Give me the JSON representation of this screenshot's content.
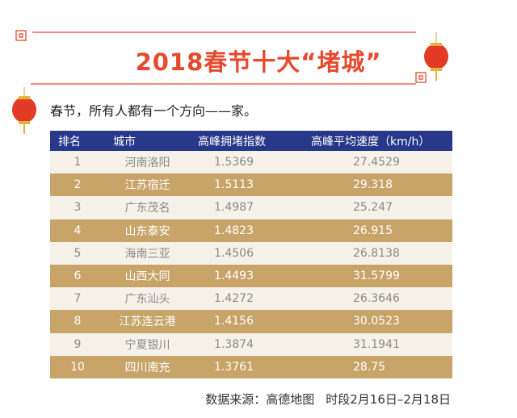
{
  "header": {
    "title": "2018春节十大“堵城”",
    "subtitle": "春节，所有人都有一个方向——家。"
  },
  "table": {
    "columns": [
      "排名",
      "城市",
      "高峰拥堵指数",
      "高峰平均速度（km/h）"
    ],
    "rows": [
      [
        1,
        "河南洛阳",
        1.5369,
        27.4529
      ],
      [
        2,
        "江苏宿迁",
        1.5113,
        29.318
      ],
      [
        3,
        "广东茂名",
        1.4987,
        25.247
      ],
      [
        4,
        "山东泰安",
        1.4823,
        26.915
      ],
      [
        5,
        "海南三亚",
        1.4506,
        26.8138
      ],
      [
        6,
        "山西大同",
        1.4493,
        31.5799
      ],
      [
        7,
        "广东汕头",
        1.4272,
        26.3646
      ],
      [
        8,
        "江苏连云港",
        1.4156,
        30.0523
      ],
      [
        9,
        "宁夏银川",
        1.3874,
        31.1941
      ],
      [
        10,
        "四川南充",
        1.3761,
        28.75
      ]
    ]
  },
  "footer": {
    "source": "数据来源：高德地图",
    "period": "时段2月16日–2月18日"
  }
}
